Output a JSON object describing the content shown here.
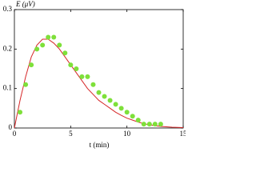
{
  "chart_data": {
    "type": "scatter",
    "y_label": "E (μV)",
    "x_label": "t (min)",
    "xlim": [
      0,
      15
    ],
    "xticks": [
      0,
      5,
      10,
      15
    ],
    "ylim": [
      0,
      0.3
    ],
    "yticks": [
      0,
      0.1,
      0.2,
      0.3
    ],
    "grid": false,
    "series": [
      {
        "mode": "line",
        "color": "#d62728",
        "x": [
          0,
          0.5,
          1,
          1.5,
          2,
          2.5,
          3,
          3.5,
          4,
          4.5,
          5,
          5.5,
          6,
          6.5,
          7,
          7.5,
          8,
          8.5,
          9,
          9.5,
          10,
          10.5,
          11,
          11.5,
          12,
          13,
          14,
          15
        ],
        "values": [
          0,
          0.07,
          0.13,
          0.18,
          0.21,
          0.225,
          0.225,
          0.215,
          0.2,
          0.18,
          0.16,
          0.14,
          0.12,
          0.1,
          0.085,
          0.07,
          0.06,
          0.05,
          0.04,
          0.032,
          0.025,
          0.02,
          0.015,
          0.011,
          0.008,
          0.004,
          0.002,
          0.001
        ]
      },
      {
        "mode": "markers",
        "color": "#7ee03a",
        "x": [
          0.5,
          1,
          1.5,
          2,
          2.5,
          3,
          3.5,
          4,
          4.5,
          5,
          5.5,
          6,
          6.5,
          7,
          7.5,
          8,
          8.5,
          9,
          9.5,
          10,
          10.5,
          11,
          11.5,
          12,
          12.5,
          13
        ],
        "values": [
          0.04,
          0.11,
          0.16,
          0.2,
          0.21,
          0.23,
          0.23,
          0.21,
          0.19,
          0.16,
          0.15,
          0.13,
          0.13,
          0.11,
          0.09,
          0.08,
          0.07,
          0.06,
          0.05,
          0.04,
          0.03,
          0.02,
          0.01,
          0.01,
          0.01,
          0.01
        ]
      }
    ]
  }
}
